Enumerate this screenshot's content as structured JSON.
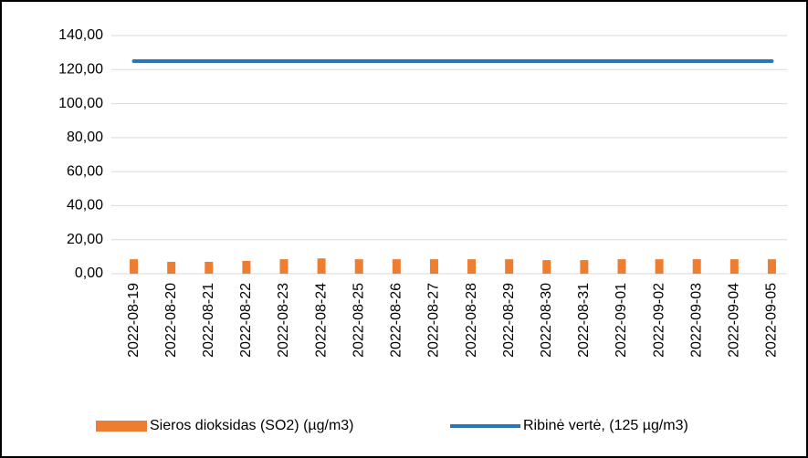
{
  "chart_data": {
    "type": "bar",
    "categories": [
      "2022-08-19",
      "2022-08-20",
      "2022-08-21",
      "2022-08-22",
      "2022-08-23",
      "2022-08-24",
      "2022-08-25",
      "2022-08-26",
      "2022-08-27",
      "2022-08-28",
      "2022-08-29",
      "2022-08-30",
      "2022-08-31",
      "2022-09-01",
      "2022-09-02",
      "2022-09-03",
      "2022-09-04",
      "2022-09-05"
    ],
    "series": [
      {
        "name": "Sieros dioksidas (SO2) (µg/m3)",
        "type": "bar",
        "color": "#ed7d31",
        "values": [
          8.5,
          7,
          7,
          7.5,
          8.5,
          9,
          8.5,
          8.5,
          8.5,
          8.5,
          8.5,
          8,
          8,
          8.5,
          8.5,
          8.5,
          8.5,
          8.5
        ]
      },
      {
        "name": "Ribinė vertė, (125 µg/m3)",
        "type": "line",
        "color": "#2e75b6",
        "values": [
          125,
          125,
          125,
          125,
          125,
          125,
          125,
          125,
          125,
          125,
          125,
          125,
          125,
          125,
          125,
          125,
          125,
          125
        ]
      }
    ],
    "ylim": [
      0,
      140
    ],
    "yticks": [
      {
        "value": 0,
        "label": "0,00"
      },
      {
        "value": 20,
        "label": "20,00"
      },
      {
        "value": 40,
        "label": "40,00"
      },
      {
        "value": 60,
        "label": "60,00"
      },
      {
        "value": 80,
        "label": "80,00"
      },
      {
        "value": 100,
        "label": "100,00"
      },
      {
        "value": 120,
        "label": "120,00"
      },
      {
        "value": 140,
        "label": "140,00"
      }
    ],
    "grid": true,
    "legend": "bottom"
  }
}
